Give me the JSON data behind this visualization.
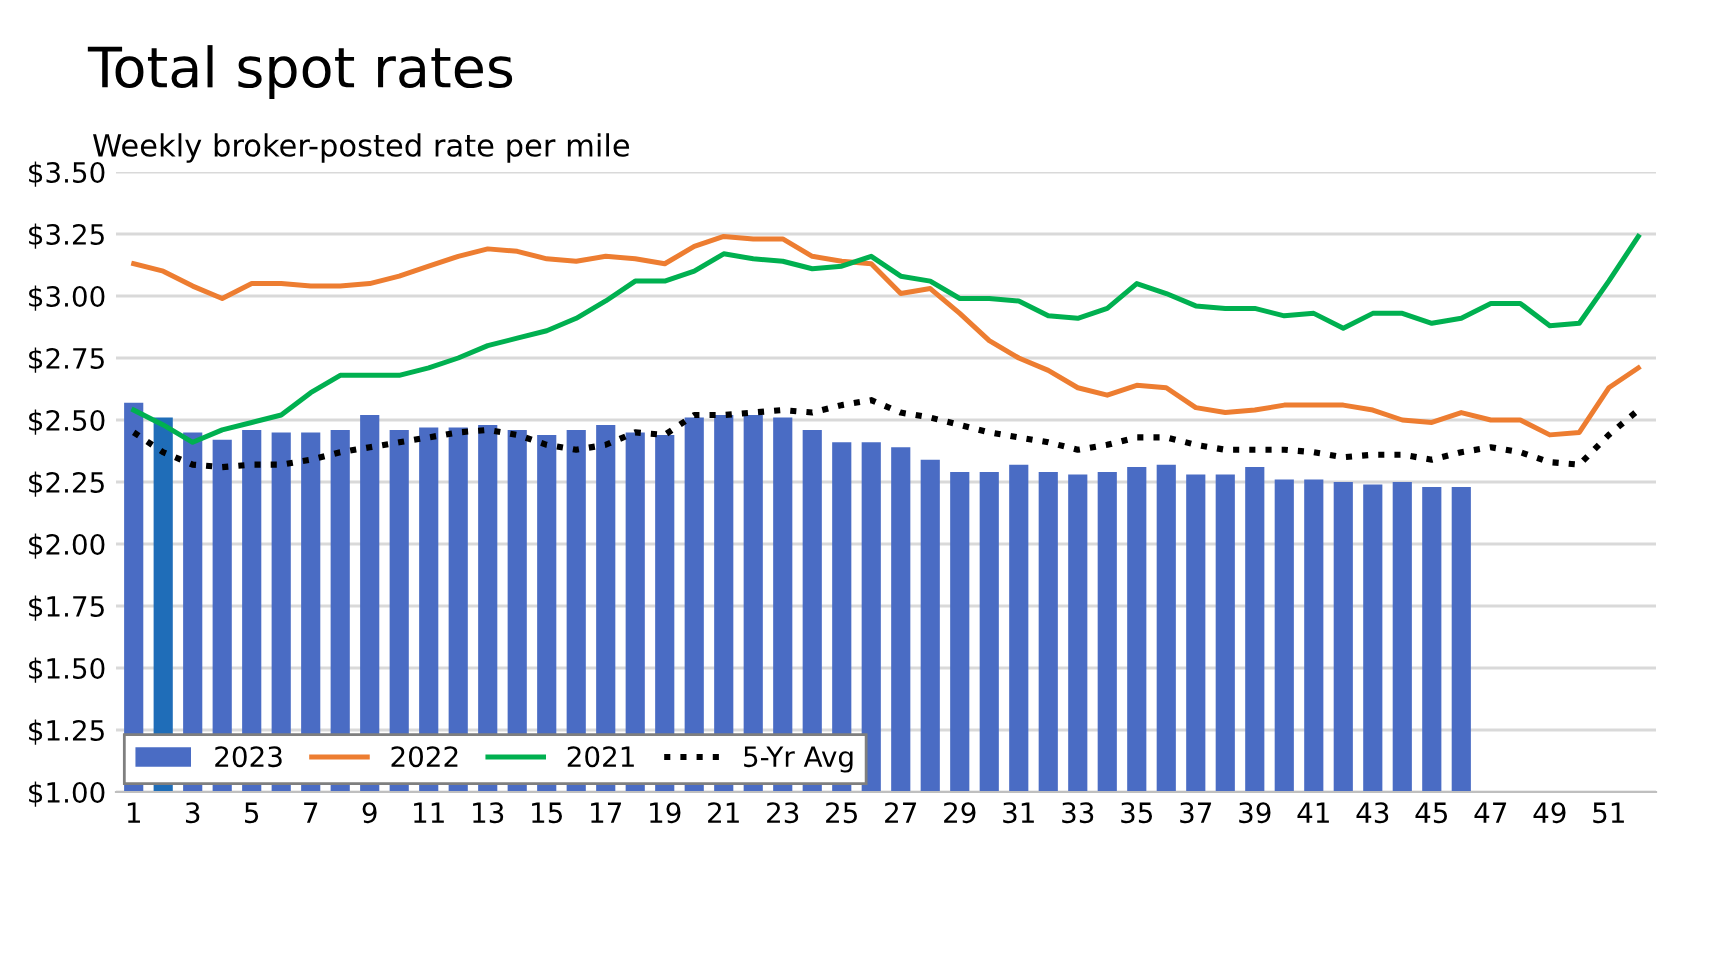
{
  "chart_data": {
    "type": "bar",
    "title": "Total spot rates",
    "subtitle": "Weekly broker-posted rate per mile",
    "categories": [
      "1",
      null,
      "3",
      null,
      "5",
      null,
      "7",
      null,
      "9",
      null,
      "11",
      null,
      "13",
      null,
      "15",
      null,
      "17",
      null,
      "19",
      null,
      "21",
      null,
      "23",
      null,
      "25",
      null,
      "27",
      null,
      "29",
      null,
      "31",
      null,
      "33",
      null,
      "35",
      null,
      "37",
      null,
      "39",
      null,
      "41",
      null,
      "43",
      null,
      "45",
      null,
      "47",
      null,
      "49",
      null,
      "51",
      null
    ],
    "series": [
      {
        "name": "2023",
        "color": "#4a6cc4",
        "colors": [
          "#4a6cc4",
          "#1f6db8",
          "#4a6cc4",
          "#4a6cc4",
          "#4a6cc4",
          "#4a6cc4",
          "#4a6cc4",
          "#4a6cc4",
          "#4a6cc4",
          "#4a6cc4",
          "#4a6cc4",
          "#4a6cc4",
          "#4a6cc4",
          "#4a6cc4",
          "#4a6cc4",
          "#4a6cc4",
          "#4a6cc4",
          "#4a6cc4",
          "#4a6cc4",
          "#4a6cc4",
          "#4a6cc4",
          "#4a6cc4",
          "#4a6cc4",
          "#4a6cc4",
          "#4a6cc4",
          "#4a6cc4",
          "#4a6cc4",
          "#4a6cc4",
          "#4a6cc4",
          "#4a6cc4",
          "#4a6cc4",
          "#4a6cc4",
          "#4a6cc4",
          "#4a6cc4",
          "#4a6cc4",
          "#4a6cc4",
          "#4a6cc4",
          "#4a6cc4",
          "#4a6cc4",
          "#4a6cc4",
          "#4a6cc4",
          "#4a6cc4",
          "#4a6cc4",
          "#4a6cc4",
          "#4a6cc4",
          "#4a6cc4",
          "#4a6cc4",
          "#4a6cc4",
          "#4a6cc4",
          "#4a6cc4",
          "#4a6cc4",
          "#4a6cc4"
        ],
        "values": [
          2.57,
          2.51,
          2.45,
          2.42,
          2.46,
          2.45,
          2.45,
          2.46,
          2.52,
          2.46,
          2.47,
          2.47,
          2.48,
          2.46,
          2.44,
          2.46,
          2.48,
          2.45,
          2.44,
          2.51,
          2.52,
          2.52,
          2.51,
          2.46,
          2.41,
          2.41,
          2.39,
          2.34,
          2.29,
          2.29,
          2.32,
          2.29,
          2.28,
          2.29,
          2.31,
          2.32,
          2.28,
          2.28,
          2.31,
          2.26,
          2.26,
          2.25,
          2.24,
          2.25,
          2.23,
          2.23,
          null,
          null,
          null,
          null,
          null,
          null
        ]
      },
      {
        "name": "2022",
        "type": "line",
        "color": "#ed7d31",
        "line_style": "solid",
        "values": [
          3.13,
          3.1,
          3.04,
          2.99,
          3.05,
          3.05,
          3.04,
          3.04,
          3.05,
          3.08,
          3.12,
          3.16,
          3.19,
          3.18,
          3.15,
          3.14,
          3.16,
          3.15,
          3.13,
          3.2,
          3.24,
          3.23,
          3.23,
          3.16,
          3.14,
          3.13,
          3.01,
          3.03,
          2.93,
          2.82,
          2.75,
          2.7,
          2.63,
          2.6,
          2.64,
          2.63,
          2.55,
          2.53,
          2.54,
          2.56,
          2.56,
          2.56,
          2.54,
          2.5,
          2.49,
          2.53,
          2.5,
          2.5,
          2.44,
          2.45,
          2.63,
          2.71
        ]
      },
      {
        "name": "2021",
        "type": "line",
        "color": "#00b050",
        "line_style": "solid",
        "values": [
          2.54,
          2.48,
          2.41,
          2.46,
          2.49,
          2.52,
          2.61,
          2.68,
          2.68,
          2.68,
          2.71,
          2.75,
          2.8,
          2.83,
          2.86,
          2.91,
          2.98,
          3.06,
          3.06,
          3.1,
          3.17,
          3.15,
          3.14,
          3.11,
          3.12,
          3.16,
          3.08,
          3.06,
          2.99,
          2.99,
          2.98,
          2.92,
          2.91,
          2.95,
          3.05,
          3.01,
          2.96,
          2.95,
          2.95,
          2.92,
          2.93,
          2.87,
          2.93,
          2.93,
          2.89,
          2.91,
          2.97,
          2.97,
          2.88,
          2.89,
          3.06,
          3.24
        ]
      },
      {
        "name": "5-Yr Avg",
        "type": "line",
        "color": "#000000",
        "line_style": "dotted",
        "values": [
          2.45,
          2.37,
          2.32,
          2.31,
          2.32,
          2.32,
          2.34,
          2.37,
          2.39,
          2.41,
          2.43,
          2.45,
          2.46,
          2.44,
          2.4,
          2.38,
          2.4,
          2.45,
          2.44,
          2.52,
          2.52,
          2.53,
          2.54,
          2.53,
          2.56,
          2.58,
          2.53,
          2.51,
          2.48,
          2.45,
          2.43,
          2.41,
          2.38,
          2.4,
          2.43,
          2.43,
          2.4,
          2.38,
          2.38,
          2.38,
          2.37,
          2.35,
          2.36,
          2.36,
          2.34,
          2.37,
          2.39,
          2.37,
          2.33,
          2.32,
          2.44,
          2.54
        ]
      }
    ],
    "ylim": [
      1.0,
      3.5
    ],
    "yticks": [
      {
        "value": 1.0,
        "label": "$1.00"
      },
      {
        "value": 1.25,
        "label": "$1.25"
      },
      {
        "value": 1.5,
        "label": "$1.50"
      },
      {
        "value": 1.75,
        "label": "$1.75"
      },
      {
        "value": 2.0,
        "label": "$2.00"
      },
      {
        "value": 2.25,
        "label": "$2.25"
      },
      {
        "value": 2.5,
        "label": "$2.50"
      },
      {
        "value": 2.75,
        "label": "$2.75"
      },
      {
        "value": 3.0,
        "label": "$3.00"
      },
      {
        "value": 3.25,
        "label": "$3.25"
      },
      {
        "value": 3.5,
        "label": "$3.50"
      }
    ],
    "grid": "y",
    "legend": "bottom left"
  }
}
